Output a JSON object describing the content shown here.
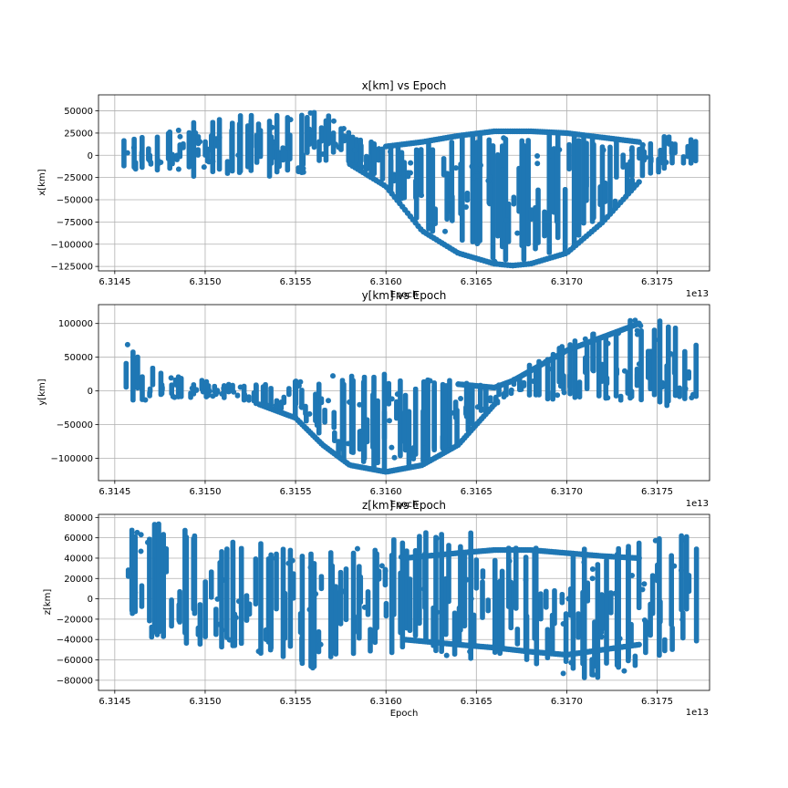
{
  "chart_data": [
    {
      "type": "scatter",
      "title": "x[km] vs Epoch",
      "xlabel": "Epoch",
      "ylabel": "x[km]",
      "offset_text": "1e13",
      "x_ticks": [
        "6.3145",
        "6.3150",
        "6.3155",
        "6.3160",
        "6.3165",
        "6.3170",
        "6.3175"
      ],
      "y_ticks": [
        "50000",
        "25000",
        "0",
        "−25000",
        "−50000",
        "−75000",
        "−100000",
        "−125000"
      ],
      "xlim": [
        6.31441,
        6.31779
      ],
      "ylim": [
        -130000,
        68000
      ],
      "grid": true,
      "color": "#1f77b4",
      "envelope": {
        "x": [
          6.31457,
          6.3147,
          6.3149,
          6.3151,
          6.3153,
          6.3155,
          6.31565,
          6.3158,
          6.316,
          6.3162,
          6.3164,
          6.3166,
          6.3167,
          6.3168,
          6.317,
          6.3172,
          6.3174,
          6.31755,
          6.3177
        ],
        "upper": [
          20000,
          25000,
          40000,
          45000,
          45000,
          45000,
          50000,
          25000,
          10000,
          15000,
          22000,
          27000,
          27000,
          27000,
          25000,
          20000,
          15000,
          25000,
          20000
        ],
        "lower": [
          -15000,
          -20000,
          -25000,
          -25000,
          -25000,
          -25000,
          -20000,
          -10000,
          -35000,
          -85000,
          -110000,
          -122000,
          -124000,
          -122000,
          -110000,
          -75000,
          -30000,
          -15000,
          -10000
        ]
      },
      "low_band": {
        "x": [
          6.3158,
          6.316,
          6.3162,
          6.3164,
          6.3166,
          6.3167,
          6.3168,
          6.317,
          6.3172,
          6.3174
        ],
        "y": [
          -10000,
          -35000,
          -85000,
          -110000,
          -122000,
          -124000,
          -122000,
          -110000,
          -75000,
          -30000
        ]
      },
      "high_band": {
        "x": [
          6.316,
          6.3162,
          6.3164,
          6.3166,
          6.3167,
          6.3168,
          6.317,
          6.3172,
          6.3174
        ],
        "y": [
          10000,
          15000,
          22000,
          27000,
          27000,
          27000,
          25000,
          20000,
          15000
        ]
      }
    },
    {
      "type": "scatter",
      "title": "y[km] vs Epoch",
      "xlabel": "Epoch",
      "ylabel": "y[km]",
      "offset_text": "1e13",
      "x_ticks": [
        "6.3145",
        "6.3150",
        "6.3155",
        "6.3160",
        "6.3165",
        "6.3170",
        "6.3175"
      ],
      "y_ticks": [
        "100000",
        "50000",
        "0",
        "−50000",
        "−100000"
      ],
      "xlim": [
        6.31441,
        6.31779
      ],
      "ylim": [
        -133000,
        128000
      ],
      "grid": true,
      "color": "#1f77b4",
      "envelope": {
        "x": [
          6.31457,
          6.3147,
          6.3149,
          6.3151,
          6.3153,
          6.3155,
          6.31565,
          6.3158,
          6.316,
          6.3162,
          6.3164,
          6.3166,
          6.3167,
          6.3168,
          6.317,
          6.3172,
          6.3174,
          6.31755,
          6.3177
        ],
        "upper": [
          70000,
          40000,
          20000,
          10000,
          10000,
          15000,
          25000,
          25000,
          25000,
          20000,
          15000,
          10000,
          20000,
          40000,
          70000,
          90000,
          110000,
          105000,
          80000
        ],
        "lower": [
          -20000,
          -15000,
          -10000,
          -10000,
          -20000,
          -40000,
          -80000,
          -110000,
          -120000,
          -110000,
          -80000,
          -20000,
          -10000,
          -10000,
          -15000,
          -20000,
          -25000,
          -25000,
          -20000
        ]
      },
      "low_band": {
        "x": [
          6.3153,
          6.3155,
          6.31565,
          6.3158,
          6.316,
          6.3162,
          6.3164,
          6.3166
        ],
        "y": [
          -20000,
          -40000,
          -80000,
          -110000,
          -120000,
          -110000,
          -80000,
          -20000
        ]
      },
      "high_band": {
        "x": [
          6.3164,
          6.3166,
          6.3167,
          6.3168,
          6.317,
          6.3172,
          6.3174
        ],
        "y": [
          10000,
          5000,
          15000,
          30000,
          60000,
          80000,
          100000
        ]
      }
    },
    {
      "type": "scatter",
      "title": "z[km] vs Epoch",
      "xlabel": "Epoch",
      "ylabel": "z[km]",
      "offset_text": "1e13",
      "x_ticks": [
        "6.3145",
        "6.3150",
        "6.3155",
        "6.3160",
        "6.3165",
        "6.3170",
        "6.3175"
      ],
      "y_ticks": [
        "80000",
        "60000",
        "40000",
        "20000",
        "0",
        "−20000",
        "−40000",
        "−60000",
        "−80000"
      ],
      "xlim": [
        6.31441,
        6.31779
      ],
      "ylim": [
        -90000,
        83000
      ],
      "grid": true,
      "color": "#1f77b4",
      "envelope": {
        "x": [
          6.31457,
          6.3147,
          6.3149,
          6.3151,
          6.3153,
          6.3155,
          6.31565,
          6.3158,
          6.316,
          6.3162,
          6.3164,
          6.3166,
          6.3167,
          6.3168,
          6.317,
          6.3172,
          6.3174,
          6.31755,
          6.3177
        ],
        "upper": [
          70000,
          75000,
          70000,
          60000,
          55000,
          50000,
          50000,
          50000,
          55000,
          70000,
          75000,
          50000,
          50000,
          50000,
          50000,
          50000,
          60000,
          65000,
          60000
        ],
        "lower": [
          -10000,
          -40000,
          -45000,
          -50000,
          -55000,
          -65000,
          -70000,
          -60000,
          -55000,
          -55000,
          -60000,
          -60000,
          -65000,
          -70000,
          -80000,
          -80000,
          -70000,
          -60000,
          -55000
        ]
      },
      "low_band": {
        "x": [
          6.3161,
          6.3164,
          6.3166,
          6.3168,
          6.317,
          6.3172,
          6.3174
        ],
        "y": [
          -40000,
          -45000,
          -48000,
          -52000,
          -55000,
          -50000,
          -45000
        ]
      },
      "high_band": {
        "x": [
          6.3161,
          6.3164,
          6.3166,
          6.3168,
          6.317,
          6.3172,
          6.3174
        ],
        "y": [
          40000,
          45000,
          48000,
          48000,
          45000,
          42000,
          40000
        ]
      }
    }
  ]
}
